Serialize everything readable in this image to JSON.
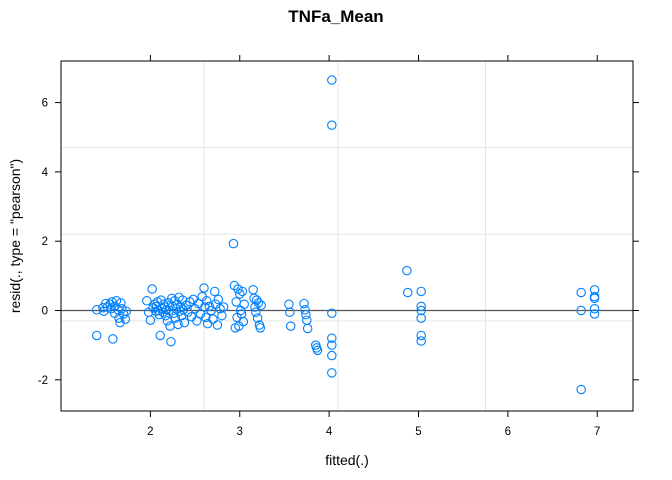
{
  "chart_data": {
    "type": "scatter",
    "title": "TNFa_Mean",
    "xlabel": "fitted(.)",
    "ylabel": "resid(., type = \"pearson\")",
    "xlim": [
      1.0,
      7.4
    ],
    "ylim": [
      -2.9,
      7.2
    ],
    "x_ticks": [
      2,
      3,
      4,
      5,
      6,
      7
    ],
    "y_ticks": [
      -2,
      0,
      2,
      4,
      6
    ],
    "x_grid": [
      2.6,
      4.1,
      5.75
    ],
    "y_grid": [
      4.7,
      2.2,
      -0.3
    ],
    "reference_line_y": 0,
    "point_color": "#0080ff",
    "series": [
      {
        "points": [
          [
            1.4,
            -0.72
          ],
          [
            1.4,
            0.02
          ],
          [
            1.47,
            0.08
          ],
          [
            1.48,
            -0.02
          ],
          [
            1.5,
            0.2
          ],
          [
            1.52,
            0.1
          ],
          [
            1.55,
            0.18
          ],
          [
            1.56,
            0.05
          ],
          [
            1.57,
            0.25
          ],
          [
            1.58,
            -0.82
          ],
          [
            1.6,
            0.12
          ],
          [
            1.6,
            -0.08
          ],
          [
            1.62,
            0.28
          ],
          [
            1.64,
            0.02
          ],
          [
            1.65,
            -0.22
          ],
          [
            1.66,
            -0.35
          ],
          [
            1.67,
            0.22
          ],
          [
            1.68,
            0.05
          ],
          [
            1.7,
            -0.1
          ],
          [
            1.72,
            -0.25
          ],
          [
            1.73,
            -0.02
          ],
          [
            1.96,
            0.28
          ],
          [
            1.98,
            -0.05
          ],
          [
            2.0,
            -0.28
          ],
          [
            2.02,
            0.62
          ],
          [
            2.03,
            0.08
          ],
          [
            2.05,
            0.18
          ],
          [
            2.06,
            -0.02
          ],
          [
            2.07,
            0.12
          ],
          [
            2.08,
            0.25
          ],
          [
            2.09,
            0.0
          ],
          [
            2.1,
            -0.12
          ],
          [
            2.11,
            -0.72
          ],
          [
            2.12,
            0.3
          ],
          [
            2.13,
            0.05
          ],
          [
            2.14,
            -0.05
          ],
          [
            2.15,
            0.18
          ],
          [
            2.16,
            0.1
          ],
          [
            2.17,
            -0.15
          ],
          [
            2.18,
            0.02
          ],
          [
            2.19,
            -0.3
          ],
          [
            2.2,
            0.22
          ],
          [
            2.21,
            0.0
          ],
          [
            2.22,
            -0.45
          ],
          [
            2.23,
            -0.9
          ],
          [
            2.24,
            0.35
          ],
          [
            2.25,
            0.12
          ],
          [
            2.26,
            -0.08
          ],
          [
            2.27,
            0.28
          ],
          [
            2.28,
            -0.22
          ],
          [
            2.29,
            0.05
          ],
          [
            2.3,
            0.18
          ],
          [
            2.31,
            -0.4
          ],
          [
            2.32,
            0.38
          ],
          [
            2.33,
            -0.02
          ],
          [
            2.34,
            0.1
          ],
          [
            2.35,
            -0.15
          ],
          [
            2.36,
            0.3
          ],
          [
            2.37,
            0.02
          ],
          [
            2.38,
            -0.35
          ],
          [
            2.4,
            0.15
          ],
          [
            2.42,
            -0.05
          ],
          [
            2.44,
            0.25
          ],
          [
            2.46,
            -0.18
          ],
          [
            2.48,
            0.32
          ],
          [
            2.5,
            0.05
          ],
          [
            2.52,
            -0.3
          ],
          [
            2.54,
            0.2
          ],
          [
            2.56,
            -0.1
          ],
          [
            2.58,
            0.4
          ],
          [
            2.6,
            0.65
          ],
          [
            2.61,
            0.1
          ],
          [
            2.62,
            -0.2
          ],
          [
            2.63,
            0.28
          ],
          [
            2.64,
            -0.38
          ],
          [
            2.66,
            0.12
          ],
          [
            2.68,
            0.0
          ],
          [
            2.7,
            -0.25
          ],
          [
            2.72,
            0.55
          ],
          [
            2.73,
            0.18
          ],
          [
            2.75,
            -0.42
          ],
          [
            2.76,
            0.32
          ],
          [
            2.78,
            0.05
          ],
          [
            2.8,
            -0.15
          ],
          [
            2.82,
            0.1
          ],
          [
            2.93,
            1.93
          ],
          [
            2.94,
            0.72
          ],
          [
            2.95,
            -0.5
          ],
          [
            2.96,
            0.25
          ],
          [
            2.97,
            -0.2
          ],
          [
            2.98,
            0.62
          ],
          [
            2.99,
            -0.45
          ],
          [
            3.0,
            0.48
          ],
          [
            3.01,
            0.0
          ],
          [
            3.02,
            -0.1
          ],
          [
            3.03,
            0.55
          ],
          [
            3.04,
            -0.32
          ],
          [
            3.05,
            0.18
          ],
          [
            3.15,
            0.6
          ],
          [
            3.16,
            0.35
          ],
          [
            3.17,
            0.1
          ],
          [
            3.18,
            -0.05
          ],
          [
            3.19,
            0.3
          ],
          [
            3.2,
            -0.22
          ],
          [
            3.21,
            0.22
          ],
          [
            3.22,
            -0.42
          ],
          [
            3.23,
            -0.5
          ],
          [
            3.24,
            0.15
          ],
          [
            3.55,
            0.18
          ],
          [
            3.56,
            -0.05
          ],
          [
            3.57,
            -0.45
          ],
          [
            3.72,
            0.2
          ],
          [
            3.73,
            0.02
          ],
          [
            3.74,
            -0.12
          ],
          [
            3.75,
            -0.28
          ],
          [
            3.76,
            -0.52
          ],
          [
            3.85,
            -1.0
          ],
          [
            3.86,
            -1.08
          ],
          [
            3.87,
            -1.15
          ],
          [
            4.03,
            6.65
          ],
          [
            4.03,
            5.35
          ],
          [
            4.03,
            -0.08
          ],
          [
            4.03,
            -0.8
          ],
          [
            4.03,
            -1.0
          ],
          [
            4.03,
            -1.3
          ],
          [
            4.03,
            -1.8
          ],
          [
            4.87,
            1.15
          ],
          [
            4.88,
            0.52
          ],
          [
            5.03,
            0.55
          ],
          [
            5.03,
            0.12
          ],
          [
            5.03,
            0.0
          ],
          [
            5.03,
            -0.22
          ],
          [
            5.03,
            -0.72
          ],
          [
            5.03,
            -0.88
          ],
          [
            6.82,
            0.52
          ],
          [
            6.82,
            0.0
          ],
          [
            6.82,
            -2.28
          ],
          [
            6.97,
            0.6
          ],
          [
            6.97,
            0.4
          ],
          [
            6.97,
            0.35
          ],
          [
            6.97,
            0.05
          ],
          [
            6.97,
            -0.1
          ]
        ]
      }
    ]
  }
}
